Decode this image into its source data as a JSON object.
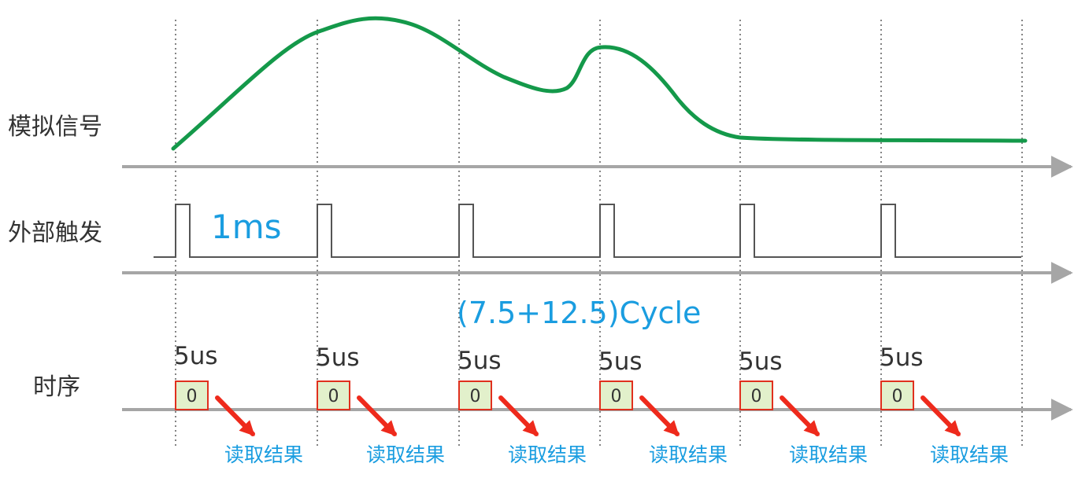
{
  "rows": {
    "analog_signal": "模拟信号",
    "external_trigger": "外部触发",
    "timing": "时序"
  },
  "annotations": {
    "trigger_period": "1ms",
    "conversion_cycles": "(7.5+12.5)Cycle"
  },
  "samples": [
    {
      "duration": "5us",
      "value": "0",
      "result": "读取结果"
    },
    {
      "duration": "5us",
      "value": "0",
      "result": "读取结果"
    },
    {
      "duration": "5us",
      "value": "0",
      "result": "读取结果"
    },
    {
      "duration": "5us",
      "value": "0",
      "result": "读取结果"
    },
    {
      "duration": "5us",
      "value": "0",
      "result": "读取结果"
    },
    {
      "duration": "5us",
      "value": "0",
      "result": "读取结果"
    }
  ],
  "colors": {
    "signal": "#14994a",
    "axis": "#a6a6a6",
    "pulse": "#555555",
    "guide": "#666666",
    "box_fill": "#e2f0cb",
    "box_border": "#e0301e",
    "arrow": "#ee2a1c",
    "annotation": "#1a9de0"
  }
}
